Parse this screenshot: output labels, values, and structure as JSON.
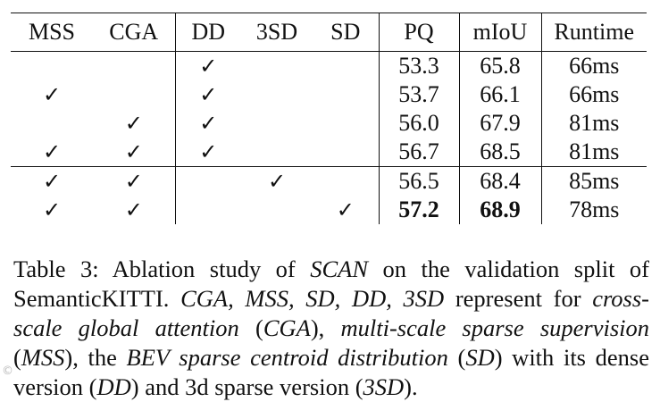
{
  "table": {
    "headers": [
      "MSS",
      "CGA",
      "DD",
      "3SD",
      "SD",
      "PQ",
      "mIoU",
      "Runtime"
    ],
    "check_mark": "✓",
    "rows": [
      {
        "mss": "",
        "cga": "",
        "dd": "✓",
        "sd3": "",
        "sd": "",
        "pq": "53.3",
        "miou": "65.8",
        "runtime": "66ms"
      },
      {
        "mss": "✓",
        "cga": "",
        "dd": "✓",
        "sd3": "",
        "sd": "",
        "pq": "53.7",
        "miou": "66.1",
        "runtime": "66ms"
      },
      {
        "mss": "",
        "cga": "✓",
        "dd": "✓",
        "sd3": "",
        "sd": "",
        "pq": "56.0",
        "miou": "67.9",
        "runtime": "81ms"
      },
      {
        "mss": "✓",
        "cga": "✓",
        "dd": "✓",
        "sd3": "",
        "sd": "",
        "pq": "56.7",
        "miou": "68.5",
        "runtime": "81ms"
      },
      {
        "mss": "✓",
        "cga": "✓",
        "dd": "",
        "sd3": "✓",
        "sd": "",
        "pq": "56.5",
        "miou": "68.4",
        "runtime": "85ms"
      },
      {
        "mss": "✓",
        "cga": "✓",
        "dd": "",
        "sd3": "",
        "sd": "✓",
        "pq": "57.2",
        "miou": "68.9",
        "runtime": "78ms"
      }
    ]
  },
  "caption": {
    "p1": "Table 3: Ablation study of ",
    "scan": "SCAN",
    "p2": " on the validation split of SemanticKITTI. ",
    "abbrs": "CGA, MSS, SD, DD, 3SD",
    "p3": " represent for ",
    "cga_full": "cross-scale global attention",
    "p4": " (",
    "cga": "CGA",
    "p5": "), ",
    "mss_full": "multi-scale sparse su­pervision",
    "p6": " (",
    "mss": "MSS",
    "p7": "), the ",
    "sd_full": "BEV sparse centroid distribution",
    "p8": " (",
    "sd": "SD",
    "p9": ") with its dense version (",
    "dd": "DD",
    "p10": ") and 3d sparse version (",
    "sd3": "3SD",
    "p11": ")."
  },
  "watermark": "©",
  "style": {
    "text_color": "#111111",
    "background": "#ffffff"
  }
}
